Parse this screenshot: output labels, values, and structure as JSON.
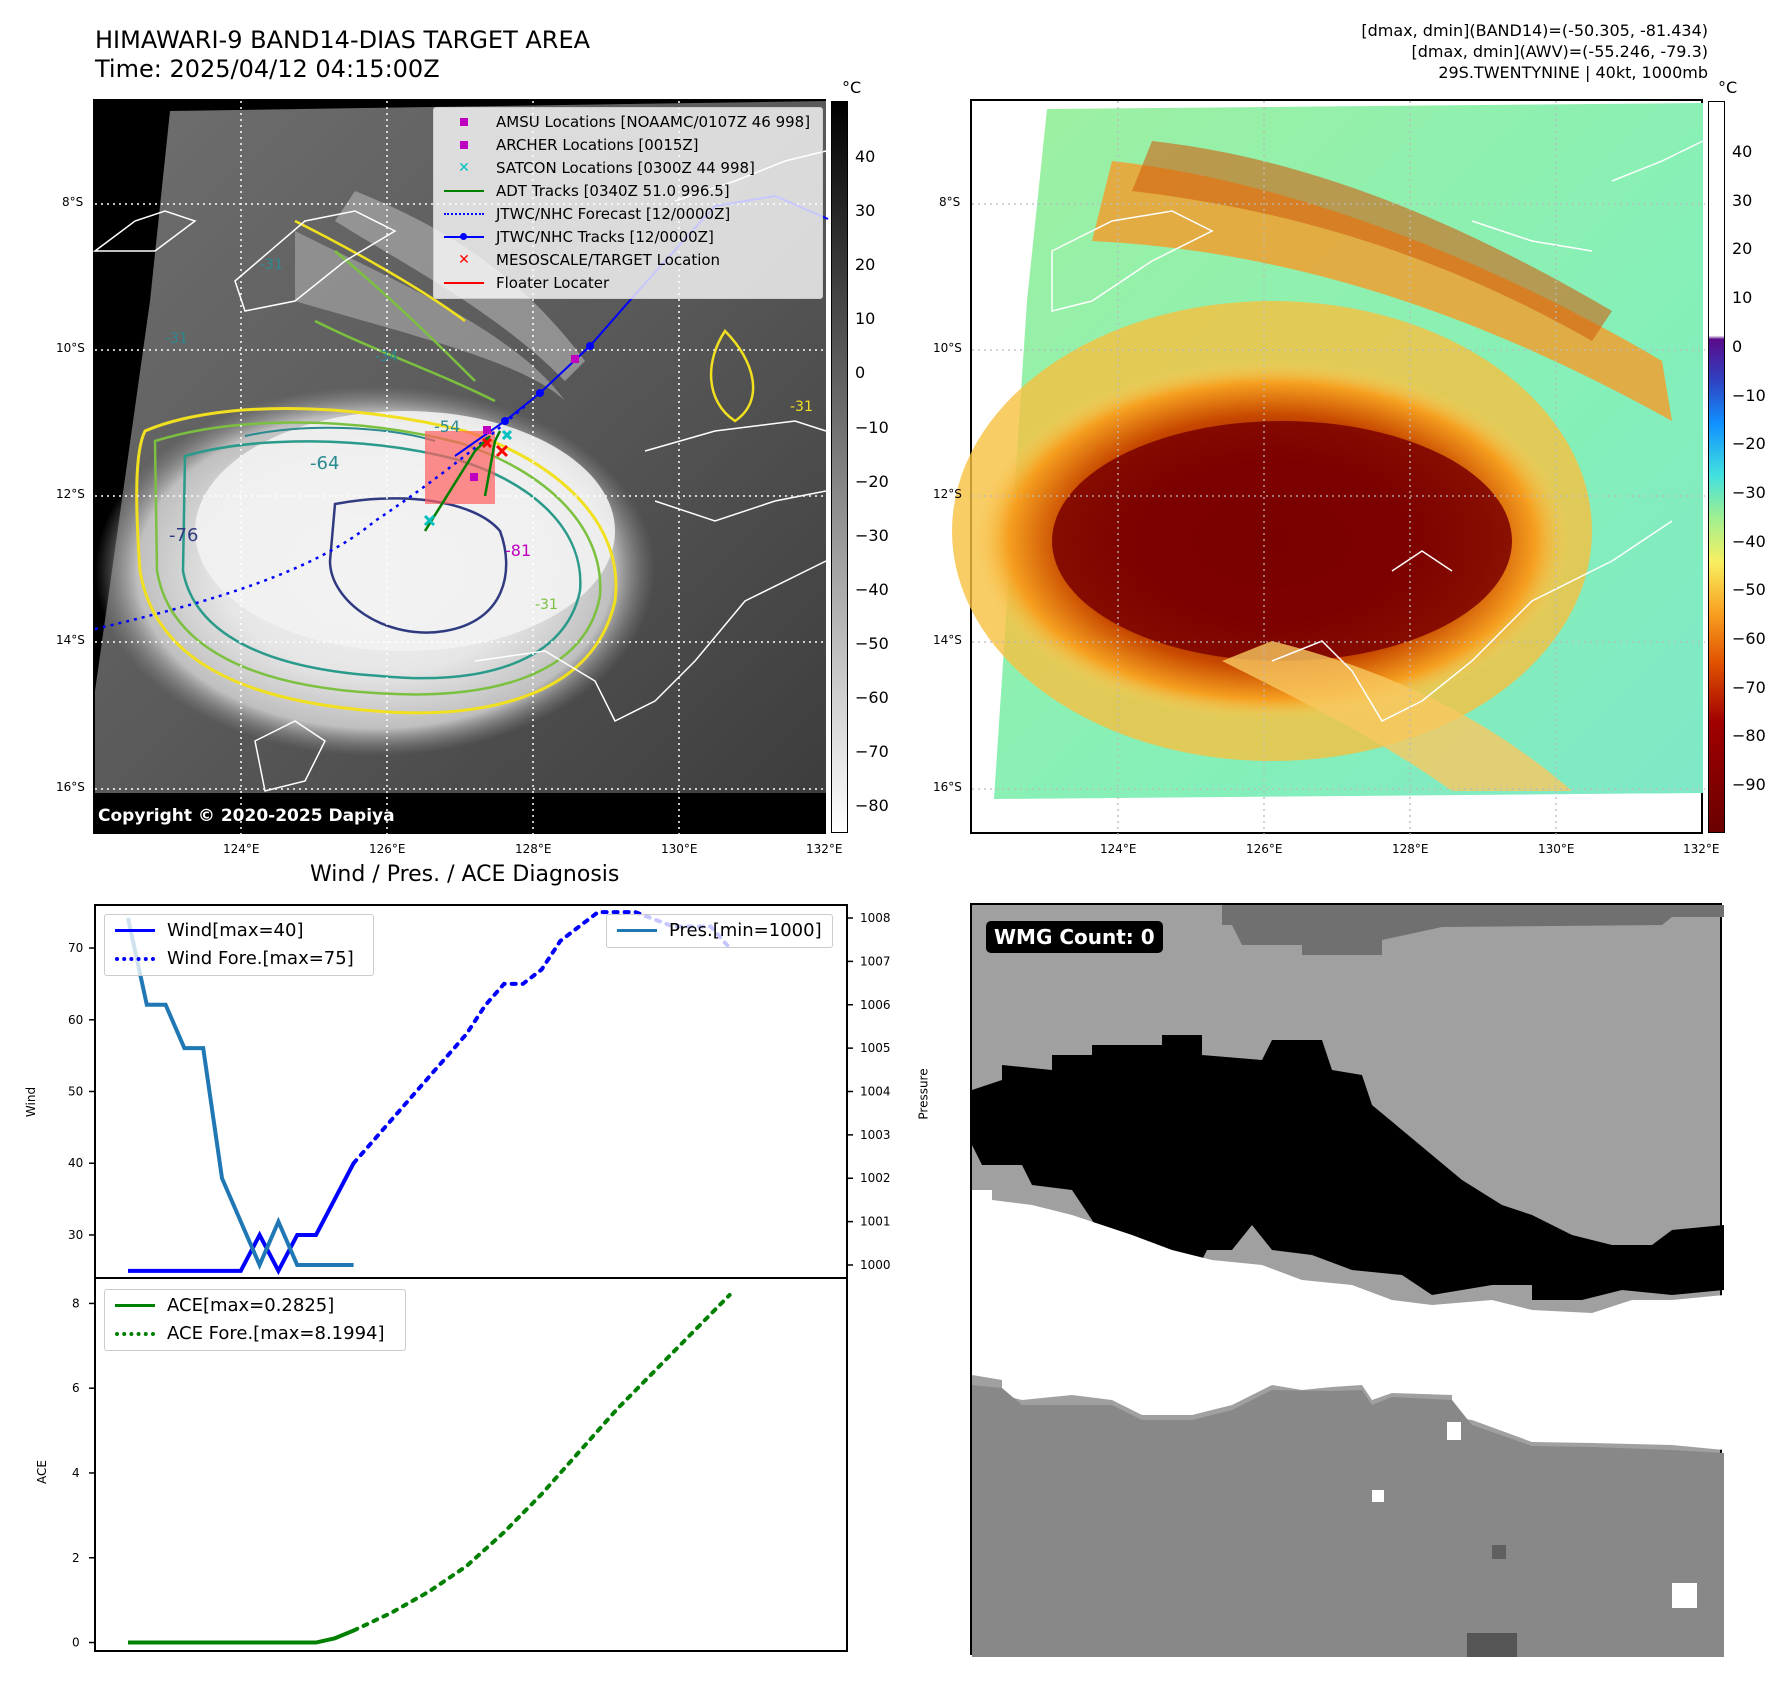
{
  "header": {
    "title_line1": "HIMAWARI-9 BAND14-DIAS TARGET AREA",
    "title_line2": "Time: 2025/04/12 04:15:00Z",
    "info_line1": "[dmax, dmin](BAND14)=(-50.305, -81.434)",
    "info_line2": "[dmax, dmin](AWV)=(-55.246, -79.3)",
    "info_line3": "29S.TWENTYNINE | 40kt, 1000mb"
  },
  "map": {
    "lat_labels": [
      "8°S",
      "10°S",
      "12°S",
      "14°S",
      "16°S"
    ],
    "lon_labels": [
      "124°E",
      "126°E",
      "128°E",
      "130°E",
      "132°E"
    ],
    "copyright": "Copyright © 2020-2025 Dapiya",
    "contour_labels": [
      "-31",
      "-31",
      "-31",
      "-34",
      "-54",
      "-64",
      "-76",
      "-81",
      "-31"
    ],
    "legend": [
      {
        "label": "AMSU Locations [NOAAMC/0107Z 46 998]",
        "color": "#c000c0"
      },
      {
        "label": "ARCHER Locations [0015Z]",
        "color": "#c000c0"
      },
      {
        "label": "SATCON Locations [0300Z 44 998]",
        "color": "#00c0c0"
      },
      {
        "label": "ADT Tracks [0340Z 51.0 996.5]",
        "color": "#008000"
      },
      {
        "label": "JTWC/NHC Forecast [12/0000Z]",
        "color": "#0000ff"
      },
      {
        "label": "JTWC/NHC Tracks [12/0000Z]",
        "color": "#0000ff"
      },
      {
        "label": "MESOSCALE/TARGET Location",
        "color": "#ff0000"
      },
      {
        "label": "Floater Locater",
        "color": "#ff0000"
      }
    ]
  },
  "colorbar_left": {
    "unit": "°C",
    "ticks": [
      "40",
      "30",
      "20",
      "10",
      "0",
      "−10",
      "−20",
      "−30",
      "−40",
      "−50",
      "−60",
      "−70",
      "−80"
    ]
  },
  "colorbar_right": {
    "unit": "°C",
    "ticks": [
      "40",
      "30",
      "20",
      "10",
      "0",
      "−10",
      "−20",
      "−30",
      "−40",
      "−50",
      "−60",
      "−70",
      "−80",
      "−90"
    ]
  },
  "diagnosis": {
    "title": "Wind / Pres. / ACE Diagnosis",
    "wind_label": "Wind[max=40]",
    "wind_fore_label": "Wind Fore.[max=75]",
    "pres_label": "Pres.[min=1000]",
    "ace_label": "ACE[max=0.2825]",
    "ace_fore_label": "ACE Fore.[max=8.1994]",
    "ylabel_wind": "Wind",
    "ylabel_pres": "Pressure",
    "ylabel_ace": "ACE",
    "wind_ticks": [
      "70",
      "60",
      "50",
      "40",
      "30"
    ],
    "pres_ticks": [
      "1008",
      "1007",
      "1006",
      "1005",
      "1004",
      "1003",
      "1002",
      "1001",
      "1000"
    ],
    "ace_ticks": [
      "8",
      "6",
      "4",
      "2",
      "0"
    ]
  },
  "wmg": {
    "label": "WMG Count: 0"
  },
  "colors": {
    "wind": "#0000ff",
    "pressure": "#1f77b4",
    "ace": "#008000",
    "forecast_track": "#0000ff",
    "adt": "#008000",
    "target": "#ff0000"
  },
  "chart_data": [
    {
      "type": "line",
      "name": "Wind / Pressure",
      "x": [
        0,
        1,
        2,
        3,
        4,
        5,
        6,
        7,
        8,
        9,
        10,
        11,
        12,
        13,
        14,
        15,
        16,
        17,
        18,
        19,
        20,
        21,
        22,
        23,
        24,
        25,
        26,
        27,
        28,
        29,
        30,
        31,
        32
      ],
      "series": [
        {
          "name": "Wind[max=40]",
          "axis": "left",
          "x": [
            0,
            1,
            2,
            3,
            4,
            5,
            6,
            7,
            8,
            9,
            10,
            11,
            12
          ],
          "values": [
            25,
            25,
            25,
            25,
            25,
            25,
            25,
            30,
            25,
            30,
            30,
            35,
            40
          ]
        },
        {
          "name": "Wind Fore.[max=75]",
          "axis": "left",
          "x": [
            12,
            13,
            14,
            15,
            16,
            17,
            18,
            19,
            20,
            21,
            22,
            23,
            24,
            25,
            26,
            27,
            28,
            29,
            30,
            31,
            32
          ],
          "values": [
            40,
            43,
            46,
            49,
            52,
            55,
            58,
            62,
            65,
            65,
            67,
            71,
            73,
            75,
            75,
            75,
            74,
            73,
            73,
            73,
            70
          ]
        },
        {
          "name": "Pres.[min=1000]",
          "axis": "right",
          "x": [
            0,
            1,
            2,
            3,
            4,
            5,
            6,
            7,
            8,
            9,
            10,
            11,
            12
          ],
          "values": [
            1008,
            1006,
            1006,
            1005,
            1005,
            1002,
            1001,
            1000,
            1001,
            1000,
            1000,
            1000,
            1000
          ]
        }
      ],
      "ylim_left": [
        24,
        76
      ],
      "ylim_right": [
        999.7,
        1008.3
      ]
    },
    {
      "type": "line",
      "name": "ACE",
      "series": [
        {
          "name": "ACE[max=0.2825]",
          "x": [
            0,
            1,
            2,
            3,
            4,
            5,
            6,
            7,
            8,
            9,
            10,
            11,
            12
          ],
          "values": [
            0,
            0,
            0,
            0,
            0,
            0,
            0,
            0,
            0,
            0,
            0,
            0.1,
            0.2825
          ]
        },
        {
          "name": "ACE Fore.[max=8.1994]",
          "x": [
            12,
            14,
            16,
            18,
            20,
            22,
            24,
            26,
            28,
            30,
            32
          ],
          "values": [
            0.2825,
            0.7,
            1.2,
            1.8,
            2.6,
            3.5,
            4.5,
            5.5,
            6.4,
            7.3,
            8.1994
          ]
        }
      ],
      "ylim": [
        -0.2,
        8.6
      ]
    }
  ]
}
